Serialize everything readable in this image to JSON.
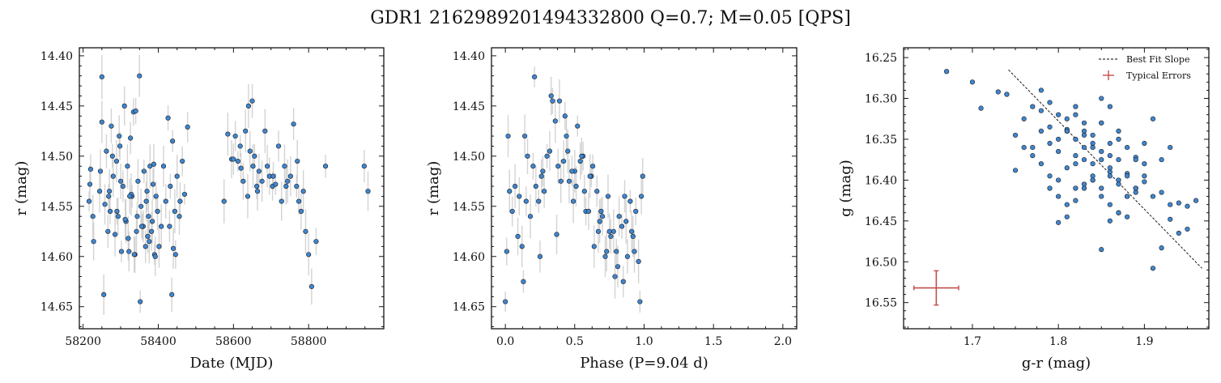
{
  "figure": {
    "title": "GDR1 2162989201494332800  Q=0.7; M=0.05 [QPS]"
  },
  "colors": {
    "point_fill": "#3f86d0",
    "point_edge": "#1a1a1a",
    "errorbar": "#c8c8c8",
    "typical_error": "#c0504d",
    "fit_line": "#000000"
  },
  "chart_data": [
    {
      "type": "scatter",
      "xlabel": "Date (MJD)",
      "ylabel": "r (mag)",
      "xlim": [
        58190,
        59000
      ],
      "ylim": [
        14.672,
        14.392
      ],
      "y_inverted": true,
      "xticks": [
        58200,
        58400,
        58600,
        58800
      ],
      "xtick_labels": [
        "58200",
        "58400",
        "58600",
        "58800"
      ],
      "yticks": [
        14.4,
        14.45,
        14.5,
        14.55,
        14.6,
        14.65
      ],
      "ytick_labels": [
        "14.40",
        "14.45",
        "14.50",
        "14.55",
        "14.60",
        "14.65"
      ],
      "errorbars": true,
      "grid": false,
      "x": [
        58216,
        58220,
        58228,
        58244,
        58250,
        58255,
        58262,
        58268,
        58272,
        58275,
        58280,
        58285,
        58289,
        58293,
        58298,
        58302,
        58306,
        58310,
        58314,
        58318,
        58322,
        58326,
        58330,
        58334,
        58338,
        58342,
        58346,
        58350,
        58354,
        58358,
        58362,
        58366,
        58370,
        58374,
        58378,
        58382,
        58386,
        58390,
        58394,
        58398,
        58402,
        58408,
        58414,
        58420,
        58426,
        58432,
        58436,
        58440,
        58444,
        58450,
        58458,
        58464,
        58470,
        58478,
        58218,
        58226,
        58246,
        58258,
        58266,
        58278,
        58290,
        58300,
        58312,
        58320,
        58328,
        58336,
        58344,
        58352,
        58360,
        58368,
        58376,
        58384,
        58392,
        58430,
        58438,
        58446,
        58456,
        58250,
        58270,
        58296,
        58324,
        58340,
        58356,
        58372,
        58388,
        58575,
        58585,
        58595,
        58605,
        58612,
        58620,
        58626,
        58632,
        58638,
        58644,
        58650,
        58656,
        58662,
        58668,
        58676,
        58684,
        58690,
        58696,
        58704,
        58712,
        58720,
        58728,
        58736,
        58744,
        58752,
        58760,
        58768,
        58774,
        58780,
        58786,
        58792,
        58800,
        58808,
        58820,
        58845,
        58948,
        58958,
        58640,
        58652,
        58664,
        58600,
        58618,
        58706,
        58740,
        58770
      ],
      "y": [
        14.545,
        14.513,
        14.585,
        14.535,
        14.421,
        14.638,
        14.495,
        14.54,
        14.555,
        14.47,
        14.52,
        14.578,
        14.505,
        14.56,
        14.49,
        14.595,
        14.53,
        14.45,
        14.565,
        14.51,
        14.595,
        14.482,
        14.54,
        14.456,
        14.598,
        14.575,
        14.525,
        14.42,
        14.55,
        14.57,
        14.515,
        14.59,
        14.535,
        14.56,
        14.51,
        14.575,
        14.528,
        14.598,
        14.54,
        14.555,
        14.59,
        14.57,
        14.51,
        14.545,
        14.462,
        14.53,
        14.638,
        14.592,
        14.555,
        14.52,
        14.545,
        14.505,
        14.538,
        14.471,
        14.528,
        14.56,
        14.515,
        14.548,
        14.575,
        14.5,
        14.555,
        14.525,
        14.563,
        14.582,
        14.538,
        14.598,
        14.56,
        14.645,
        14.57,
        14.545,
        14.585,
        14.565,
        14.6,
        14.57,
        14.485,
        14.598,
        14.56,
        14.466,
        14.535,
        14.48,
        14.54,
        14.455,
        14.57,
        14.58,
        14.508,
        14.545,
        14.478,
        14.503,
        14.48,
        14.505,
        14.512,
        14.525,
        14.475,
        14.54,
        14.495,
        14.445,
        14.5,
        14.53,
        14.515,
        14.525,
        14.475,
        14.51,
        14.52,
        14.53,
        14.528,
        14.49,
        14.545,
        14.51,
        14.525,
        14.52,
        14.468,
        14.53,
        14.545,
        14.555,
        14.535,
        14.575,
        14.598,
        14.63,
        14.585,
        14.51,
        14.51,
        14.535,
        14.45,
        14.51,
        14.535,
        14.503,
        14.49,
        14.52,
        14.53,
        14.505
      ]
    },
    {
      "type": "scatter",
      "xlabel": "Phase (P=9.04 d)",
      "ylabel": "r (mag)",
      "xlim": [
        -0.1,
        2.1
      ],
      "ylim": [
        14.672,
        14.392
      ],
      "y_inverted": true,
      "xticks": [
        0.0,
        0.5,
        1.0,
        1.5,
        2.0
      ],
      "xtick_labels": [
        "0.0",
        "0.5",
        "1.0",
        "1.5",
        "2.0"
      ],
      "yticks": [
        14.4,
        14.45,
        14.5,
        14.55,
        14.6,
        14.65
      ],
      "ytick_labels": [
        "14.40",
        "14.45",
        "14.50",
        "14.55",
        "14.60",
        "14.65"
      ],
      "errorbars": true,
      "grid": false,
      "x": [
        0.0,
        0.05,
        0.1,
        0.14,
        0.18,
        0.22,
        0.26,
        0.3,
        0.34,
        0.38,
        0.42,
        0.46,
        0.5,
        0.54,
        0.58,
        0.62,
        0.66,
        0.7,
        0.74,
        0.78,
        0.82,
        0.86,
        0.9,
        0.94,
        0.98,
        0.02,
        0.07,
        0.12,
        0.16,
        0.2,
        0.24,
        0.28,
        0.32,
        0.36,
        0.4,
        0.44,
        0.48,
        0.52,
        0.56,
        0.6,
        0.64,
        0.68,
        0.72,
        0.76,
        0.8,
        0.84,
        0.88,
        0.92,
        0.96,
        0.03,
        0.09,
        0.15,
        0.21,
        0.27,
        0.33,
        0.39,
        0.45,
        0.51,
        0.57,
        0.63,
        0.69,
        0.75,
        0.81,
        0.87,
        0.93,
        0.99,
        0.01,
        0.13,
        0.25,
        0.37,
        0.49,
        0.61,
        0.73,
        0.85,
        0.97,
        0.43,
        0.55,
        0.67,
        0.79,
        0.91
      ],
      "y": [
        14.645,
        14.555,
        14.54,
        14.48,
        14.56,
        14.53,
        14.52,
        14.5,
        14.445,
        14.51,
        14.505,
        14.525,
        14.515,
        14.505,
        14.555,
        14.52,
        14.535,
        14.56,
        14.54,
        14.575,
        14.56,
        14.54,
        14.545,
        14.555,
        14.54,
        14.48,
        14.53,
        14.59,
        14.5,
        14.51,
        14.545,
        14.535,
        14.495,
        14.465,
        14.525,
        14.48,
        14.515,
        14.47,
        14.5,
        14.555,
        14.59,
        14.565,
        14.6,
        14.58,
        14.595,
        14.57,
        14.6,
        14.58,
        14.605,
        14.535,
        14.58,
        14.545,
        14.421,
        14.515,
        14.44,
        14.445,
        14.495,
        14.53,
        14.535,
        14.51,
        14.555,
        14.575,
        14.61,
        14.565,
        14.595,
        14.52,
        14.595,
        14.625,
        14.6,
        14.578,
        14.545,
        14.52,
        14.595,
        14.625,
        14.645,
        14.46,
        14.5,
        14.575,
        14.62,
        14.575
      ]
    },
    {
      "type": "scatter",
      "xlabel": "g-r (mag)",
      "ylabel": "g (mag)",
      "xlim": [
        1.62,
        1.975
      ],
      "ylim": [
        16.582,
        16.238
      ],
      "y_inverted": true,
      "xticks": [
        1.7,
        1.8,
        1.9
      ],
      "xtick_labels": [
        "1.7",
        "1.8",
        "1.9"
      ],
      "yticks": [
        16.25,
        16.3,
        16.35,
        16.4,
        16.45,
        16.5,
        16.55
      ],
      "ytick_labels": [
        "16.25",
        "16.30",
        "16.35",
        "16.40",
        "16.45",
        "16.50",
        "16.55"
      ],
      "errorbars": false,
      "grid": false,
      "legend": {
        "position": "top-right",
        "entries": [
          "Best Fit Slope",
          "Typical Errors"
        ]
      },
      "fit_line": {
        "x": [
          1.742,
          1.967
        ],
        "y": [
          16.265,
          16.508
        ]
      },
      "typical_error": {
        "x": 1.658,
        "y": 16.532,
        "xerr": 0.026,
        "yerr": 0.021
      },
      "x": [
        1.67,
        1.7,
        1.71,
        1.73,
        1.74,
        1.75,
        1.76,
        1.77,
        1.78,
        1.79,
        1.8,
        1.81,
        1.82,
        1.83,
        1.84,
        1.85,
        1.86,
        1.87,
        1.88,
        1.89,
        1.9,
        1.91,
        1.92,
        1.93,
        1.94,
        1.95,
        1.96,
        1.78,
        1.79,
        1.8,
        1.81,
        1.82,
        1.83,
        1.84,
        1.85,
        1.86,
        1.87,
        1.88,
        1.89,
        1.9,
        1.77,
        1.78,
        1.79,
        1.8,
        1.81,
        1.82,
        1.83,
        1.84,
        1.85,
        1.86,
        1.87,
        1.88,
        1.89,
        1.75,
        1.76,
        1.77,
        1.78,
        1.79,
        1.8,
        1.81,
        1.82,
        1.83,
        1.84,
        1.85,
        1.86,
        1.87,
        1.88,
        1.91,
        1.92,
        1.79,
        1.8,
        1.81,
        1.82,
        1.83,
        1.84,
        1.85,
        1.86,
        1.87,
        1.88,
        1.89,
        1.9,
        1.93,
        1.8,
        1.81,
        1.82,
        1.83,
        1.84,
        1.85,
        1.86,
        1.87,
        1.83,
        1.85,
        1.87,
        1.89,
        1.91,
        1.84,
        1.86,
        1.88,
        1.82,
        1.81,
        1.85,
        1.86,
        1.9,
        1.94,
        1.95,
        1.93,
        1.92
      ],
      "y": [
        16.267,
        16.28,
        16.312,
        16.292,
        16.295,
        16.345,
        16.325,
        16.36,
        16.315,
        16.335,
        16.35,
        16.338,
        16.37,
        16.36,
        16.38,
        16.375,
        16.39,
        16.4,
        16.392,
        16.41,
        16.402,
        16.42,
        16.415,
        16.43,
        16.428,
        16.432,
        16.425,
        16.29,
        16.305,
        16.32,
        16.325,
        16.31,
        16.33,
        16.345,
        16.33,
        16.355,
        16.34,
        16.36,
        16.372,
        16.38,
        16.31,
        16.34,
        16.355,
        16.365,
        16.34,
        16.35,
        16.345,
        16.36,
        16.365,
        16.385,
        16.375,
        16.395,
        16.375,
        16.388,
        16.36,
        16.37,
        16.38,
        16.395,
        16.4,
        16.385,
        16.41,
        16.405,
        16.4,
        16.42,
        16.395,
        16.405,
        16.42,
        16.325,
        16.375,
        16.41,
        16.42,
        16.43,
        16.38,
        16.375,
        16.395,
        16.41,
        16.43,
        16.44,
        16.445,
        16.415,
        16.395,
        16.36,
        16.452,
        16.445,
        16.425,
        16.41,
        16.4,
        16.485,
        16.45,
        16.44,
        16.34,
        16.33,
        16.35,
        16.41,
        16.508,
        16.355,
        16.37,
        16.42,
        16.32,
        16.34,
        16.3,
        16.31,
        16.355,
        16.465,
        16.46,
        16.448,
        16.483
      ]
    }
  ]
}
